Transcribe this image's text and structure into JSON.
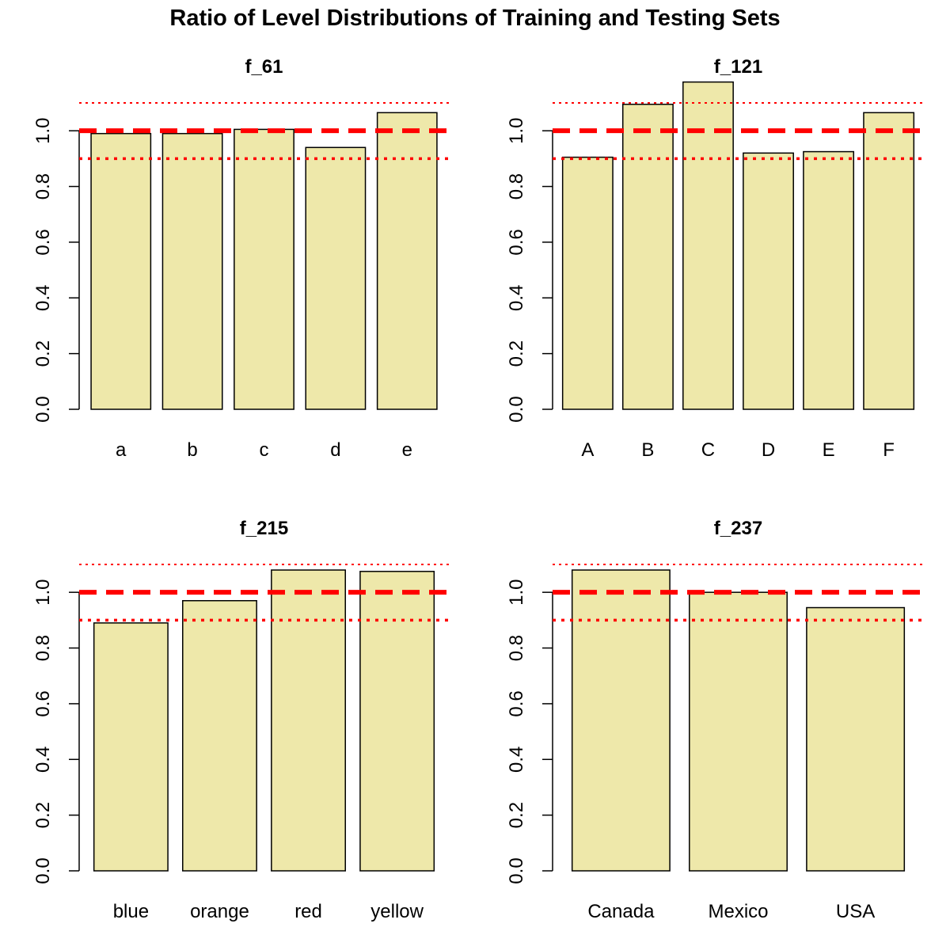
{
  "title": "Ratio of Level Distributions of Training and Testing Sets",
  "colors": {
    "bar_fill": "#EEE8AA",
    "bar_stroke": "#000000",
    "ref_line": "#FF0000"
  },
  "chart_data": [
    {
      "type": "bar",
      "title": "f_61",
      "categories": [
        "a",
        "b",
        "c",
        "d",
        "e"
      ],
      "values": [
        0.99,
        0.99,
        1.005,
        0.94,
        1.065
      ],
      "ylim": [
        0,
        1.1
      ],
      "yticks": [
        "0.0",
        "0.2",
        "0.4",
        "0.6",
        "0.8",
        "1.0"
      ],
      "reference_lines": [
        {
          "y": 1.0,
          "style": "dashed-thick"
        },
        {
          "y": 0.9,
          "style": "dotted"
        },
        {
          "y": 1.1,
          "style": "dotted-thin"
        }
      ]
    },
    {
      "type": "bar",
      "title": "f_121",
      "categories": [
        "A",
        "B",
        "C",
        "D",
        "E",
        "F"
      ],
      "values": [
        0.905,
        1.095,
        1.175,
        0.92,
        0.925,
        1.065
      ],
      "ylim": [
        0,
        1.1
      ],
      "yticks": [
        "0.0",
        "0.2",
        "0.4",
        "0.6",
        "0.8",
        "1.0"
      ],
      "reference_lines": [
        {
          "y": 1.0,
          "style": "dashed-thick"
        },
        {
          "y": 0.9,
          "style": "dotted"
        },
        {
          "y": 1.1,
          "style": "dotted-thin"
        }
      ]
    },
    {
      "type": "bar",
      "title": "f_215",
      "categories": [
        "blue",
        "orange",
        "red",
        "yellow"
      ],
      "values": [
        0.89,
        0.97,
        1.08,
        1.075
      ],
      "ylim": [
        0,
        1.1
      ],
      "yticks": [
        "0.0",
        "0.2",
        "0.4",
        "0.6",
        "0.8",
        "1.0"
      ],
      "reference_lines": [
        {
          "y": 1.0,
          "style": "dashed-thick"
        },
        {
          "y": 0.9,
          "style": "dotted"
        },
        {
          "y": 1.1,
          "style": "dotted-thin"
        }
      ]
    },
    {
      "type": "bar",
      "title": "f_237",
      "categories": [
        "Canada",
        "Mexico",
        "USA"
      ],
      "values": [
        1.08,
        1.0,
        0.945
      ],
      "ylim": [
        0,
        1.1
      ],
      "yticks": [
        "0.0",
        "0.2",
        "0.4",
        "0.6",
        "0.8",
        "1.0"
      ],
      "reference_lines": [
        {
          "y": 1.0,
          "style": "dashed-thick"
        },
        {
          "y": 0.9,
          "style": "dotted"
        },
        {
          "y": 1.1,
          "style": "dotted-thin"
        }
      ]
    }
  ]
}
